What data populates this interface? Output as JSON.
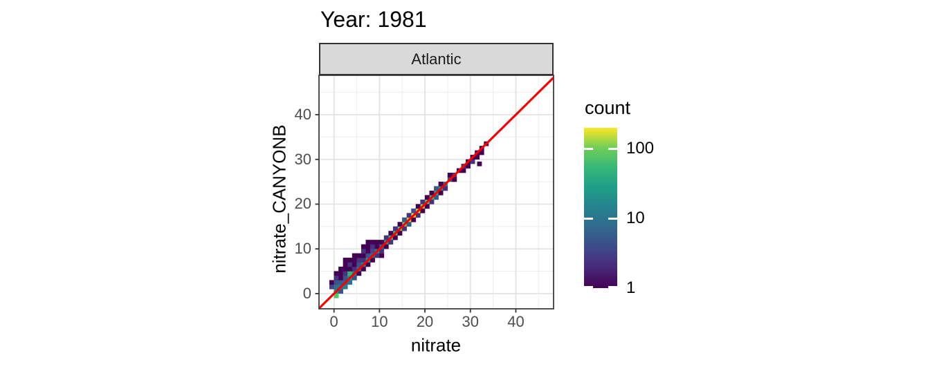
{
  "title": "Year: 1981",
  "facet": {
    "label": "Atlantic"
  },
  "axes": {
    "x": {
      "title": "nitrate",
      "tick_labels": [
        "0",
        "10",
        "20",
        "30",
        "40"
      ],
      "tick_values": [
        0,
        10,
        20,
        30,
        40
      ],
      "minor": [
        5,
        15,
        25,
        35,
        45
      ],
      "lim": [
        -3.3,
        48.3
      ]
    },
    "y": {
      "title": "nitrate_CANYONB",
      "tick_labels": [
        "0",
        "10",
        "20",
        "30",
        "40"
      ],
      "tick_values": [
        0,
        10,
        20,
        30,
        40
      ],
      "minor": [
        5,
        15,
        25,
        35,
        45
      ],
      "lim": [
        -3.4,
        48.8
      ]
    }
  },
  "legend": {
    "title": "count",
    "labels": [
      "100",
      "10",
      "1"
    ],
    "values": [
      100,
      10,
      1
    ],
    "scale": "log10",
    "max_value": 200,
    "gradient": [
      "#440154",
      "#482878",
      "#3e4a89",
      "#31688e",
      "#26828e",
      "#1f9e89",
      "#35b779",
      "#6ece58",
      "#fde725"
    ]
  },
  "colors": {
    "reference_line": "#f80000",
    "strip_fill": "#d9d9d9",
    "panel_border": "#3d3d3d",
    "grid_major": "#e3e3e3",
    "grid_minor": "#efefef",
    "tick_mark": "#333333",
    "tick_text": "#4d4d4d"
  },
  "chart_data": {
    "type": "heatmap",
    "subtype": "geom_bin2d",
    "title": "Year: 1981",
    "facet": "Atlantic",
    "xlabel": "nitrate",
    "ylabel": "nitrate_CANYONB",
    "xlim": [
      -3.3,
      48.3
    ],
    "ylim": [
      -3.4,
      48.8
    ],
    "x_ticks": [
      0,
      10,
      20,
      30,
      40
    ],
    "y_ticks": [
      0,
      10,
      20,
      30,
      40
    ],
    "grid": "on",
    "legend_position": "right",
    "color_scale": {
      "name": "viridis",
      "trans": "log10",
      "ticks": [
        1,
        10,
        100
      ],
      "range": [
        1,
        200
      ],
      "label": "count"
    },
    "reference_line": {
      "type": "y=x",
      "color": "#f80000",
      "width": 3.2
    },
    "bin_size": 1,
    "palette": [
      "#440154",
      "#46327e",
      "#414487",
      "#3b528b",
      "#365c8d",
      "#33638d",
      "#2c728e",
      "#277f8e",
      "#21918c",
      "#1fa088",
      "#28ae80",
      "#35b779",
      "#3fbc73",
      "#4ac16d",
      "#5ec962",
      "#7ad151",
      "#a5db36",
      "#bddf26",
      "#d2e21b",
      "#fde725",
      "#54c568"
    ],
    "palette_approx_counts": [
      1,
      2,
      3,
      4,
      5,
      5,
      7,
      8,
      10,
      13,
      18,
      25,
      30,
      35,
      45,
      55,
      75,
      90,
      120,
      180,
      40
    ],
    "bins": [
      [
        -1,
        1,
        2
      ],
      [
        -1,
        2,
        0
      ],
      [
        0,
        -1,
        20
      ],
      [
        0,
        0,
        8
      ],
      [
        0,
        1,
        6
      ],
      [
        0,
        2,
        3
      ],
      [
        0,
        3,
        1
      ],
      [
        0,
        4,
        0
      ],
      [
        1,
        0,
        3
      ],
      [
        1,
        1,
        6
      ],
      [
        1,
        2,
        4
      ],
      [
        1,
        3,
        0
      ],
      [
        1,
        4,
        0
      ],
      [
        1,
        5,
        0
      ],
      [
        2,
        1,
        7
      ],
      [
        2,
        2,
        5
      ],
      [
        2,
        3,
        3
      ],
      [
        2,
        4,
        1
      ],
      [
        2,
        5,
        0
      ],
      [
        2,
        6,
        0
      ],
      [
        2,
        7,
        0
      ],
      [
        3,
        2,
        6
      ],
      [
        3,
        3,
        8
      ],
      [
        3,
        4,
        11
      ],
      [
        3,
        5,
        0
      ],
      [
        3,
        6,
        1
      ],
      [
        3,
        7,
        0
      ],
      [
        4,
        3,
        3
      ],
      [
        4,
        4,
        7
      ],
      [
        4,
        5,
        1
      ],
      [
        4,
        6,
        0
      ],
      [
        4,
        7,
        0
      ],
      [
        4,
        8,
        0
      ],
      [
        5,
        4,
        0
      ],
      [
        5,
        5,
        6
      ],
      [
        5,
        6,
        3
      ],
      [
        5,
        7,
        1
      ],
      [
        5,
        8,
        0
      ],
      [
        6,
        5,
        0
      ],
      [
        6,
        6,
        7
      ],
      [
        6,
        7,
        1
      ],
      [
        6,
        8,
        0
      ],
      [
        6,
        9,
        1
      ],
      [
        6,
        10,
        0
      ],
      [
        7,
        6,
        0
      ],
      [
        7,
        7,
        8
      ],
      [
        7,
        8,
        3
      ],
      [
        7,
        9,
        0
      ],
      [
        7,
        10,
        0
      ],
      [
        7,
        11,
        0
      ],
      [
        8,
        7,
        0
      ],
      [
        8,
        8,
        6
      ],
      [
        8,
        9,
        2
      ],
      [
        8,
        10,
        1
      ],
      [
        8,
        11,
        0
      ],
      [
        9,
        8,
        1
      ],
      [
        9,
        9,
        7
      ],
      [
        9,
        10,
        0
      ],
      [
        9,
        11,
        0
      ],
      [
        10,
        8,
        0
      ],
      [
        10,
        9,
        1
      ],
      [
        10,
        10,
        5
      ],
      [
        11,
        11,
        9
      ],
      [
        12,
        12,
        11
      ],
      [
        13,
        13,
        13
      ],
      [
        14,
        14,
        14
      ],
      [
        15,
        15,
        15
      ],
      [
        16,
        16,
        17
      ],
      [
        17,
        17,
        19
      ],
      [
        18,
        18,
        18
      ],
      [
        19,
        19,
        16
      ],
      [
        20,
        20,
        14
      ],
      [
        21,
        21,
        12
      ],
      [
        22,
        22,
        10
      ],
      [
        23,
        23,
        8
      ],
      [
        24,
        24,
        7
      ],
      [
        25,
        25,
        3
      ],
      [
        26,
        26,
        1
      ],
      [
        10,
        11,
        0
      ],
      [
        11,
        12,
        1
      ],
      [
        12,
        13,
        0
      ],
      [
        13,
        14,
        1
      ],
      [
        14,
        15,
        0
      ],
      [
        15,
        16,
        4
      ],
      [
        16,
        17,
        1
      ],
      [
        17,
        18,
        3
      ],
      [
        18,
        19,
        0
      ],
      [
        19,
        20,
        1
      ],
      [
        20,
        21,
        0
      ],
      [
        21,
        22,
        0
      ],
      [
        22,
        23,
        4
      ],
      [
        23,
        24,
        0
      ],
      [
        25,
        26,
        0
      ],
      [
        11,
        10,
        0
      ],
      [
        12,
        11,
        1
      ],
      [
        13,
        12,
        0
      ],
      [
        14,
        13,
        0
      ],
      [
        15,
        14,
        1
      ],
      [
        16,
        15,
        4
      ],
      [
        17,
        16,
        0
      ],
      [
        18,
        17,
        1
      ],
      [
        19,
        18,
        0
      ],
      [
        20,
        19,
        0
      ],
      [
        21,
        20,
        1
      ],
      [
        22,
        21,
        4
      ],
      [
        23,
        22,
        0
      ],
      [
        24,
        23,
        1
      ],
      [
        26,
        25,
        0
      ],
      [
        27,
        27,
        0
      ],
      [
        28,
        27,
        0
      ],
      [
        28,
        28,
        1
      ],
      [
        29,
        28,
        0
      ],
      [
        29,
        29,
        0
      ],
      [
        30,
        29,
        1
      ],
      [
        30,
        30,
        0
      ],
      [
        31,
        30,
        0
      ],
      [
        31,
        31,
        0
      ],
      [
        32,
        31,
        0
      ],
      [
        32,
        32,
        0
      ],
      [
        33,
        33,
        0
      ],
      [
        31.5,
        28.5,
        0
      ]
    ]
  }
}
